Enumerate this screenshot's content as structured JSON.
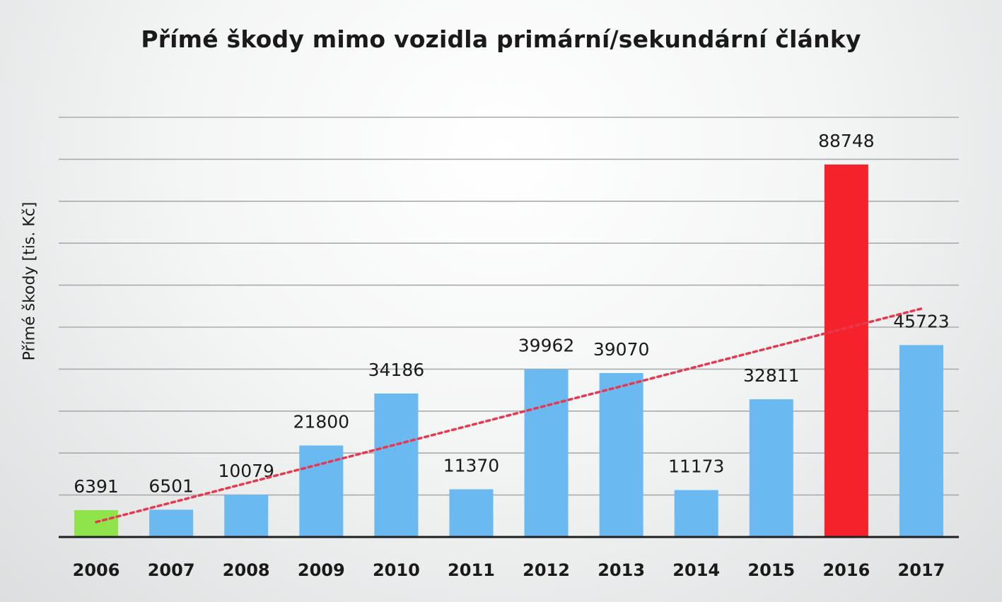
{
  "chart_data": {
    "type": "bar",
    "title": "Přímé škody mimo vozidla primární/sekundární články",
    "xlabel": "",
    "ylabel": "Přímé škody [tis. Kč]",
    "categories": [
      "2006",
      "2007",
      "2008",
      "2009",
      "2010",
      "2011",
      "2012",
      "2013",
      "2014",
      "2015",
      "2016",
      "2017"
    ],
    "values": [
      6391,
      6501,
      10079,
      21800,
      34186,
      11370,
      39962,
      39070,
      11173,
      32811,
      88748,
      45723
    ],
    "bar_colors": [
      "#8ee44a",
      "#6ab9f0",
      "#6ab9f0",
      "#6ab9f0",
      "#6ab9f0",
      "#6ab9f0",
      "#6ab9f0",
      "#6ab9f0",
      "#6ab9f0",
      "#6ab9f0",
      "#f5222b",
      "#6ab9f0"
    ],
    "ylim": [
      0,
      100000
    ],
    "grid": true,
    "y_tick_labels_shown": false,
    "trendline": {
      "type": "linear",
      "style": "dotted",
      "color": "#e8374f"
    }
  }
}
